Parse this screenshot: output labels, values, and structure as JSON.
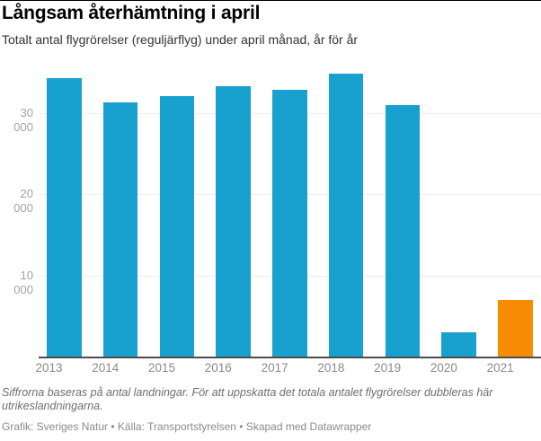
{
  "header": {
    "title": "Långsam återhämtning i april",
    "subtitle": "Totalt antal flygrörelser (reguljärflyg) under april månad, år för år"
  },
  "chart_data": {
    "type": "bar",
    "title": "Långsam återhämtning i april",
    "subtitle": "Totalt antal flygrörelser (reguljärflyg) under april månad, år för år",
    "categories": [
      "2013",
      "2014",
      "2015",
      "2016",
      "2017",
      "2018",
      "2019",
      "2020",
      "2021"
    ],
    "values": [
      34200,
      31300,
      32000,
      33200,
      32800,
      34800,
      30900,
      3100,
      7000
    ],
    "xlabel": "",
    "ylabel": "",
    "ylim": [
      0,
      36000
    ],
    "yticks": [
      10000,
      20000,
      30000
    ],
    "ytick_labels": [
      "10 000",
      "20 000",
      "30 000"
    ],
    "grid": "horizontal",
    "legend": "none",
    "base_color": "#18a1ce",
    "highlight_color": "#f78b05",
    "bar_colors": [
      "#18a1ce",
      "#18a1ce",
      "#18a1ce",
      "#18a1ce",
      "#18a1ce",
      "#18a1ce",
      "#18a1ce",
      "#18a1ce",
      "#f78b05"
    ],
    "gridline_color": "#ededed",
    "axis_line_color": "#4c4c4c"
  },
  "footer": {
    "note": "Siffrorna baseras på antal landningar. För att uppskatta det totala antalet flygrörelser dubbleras här utrikeslandningarna.",
    "credits": "Grafik: Sveriges Natur • Källa: Transportstyrelsen • Skapad med Datawrapper"
  }
}
